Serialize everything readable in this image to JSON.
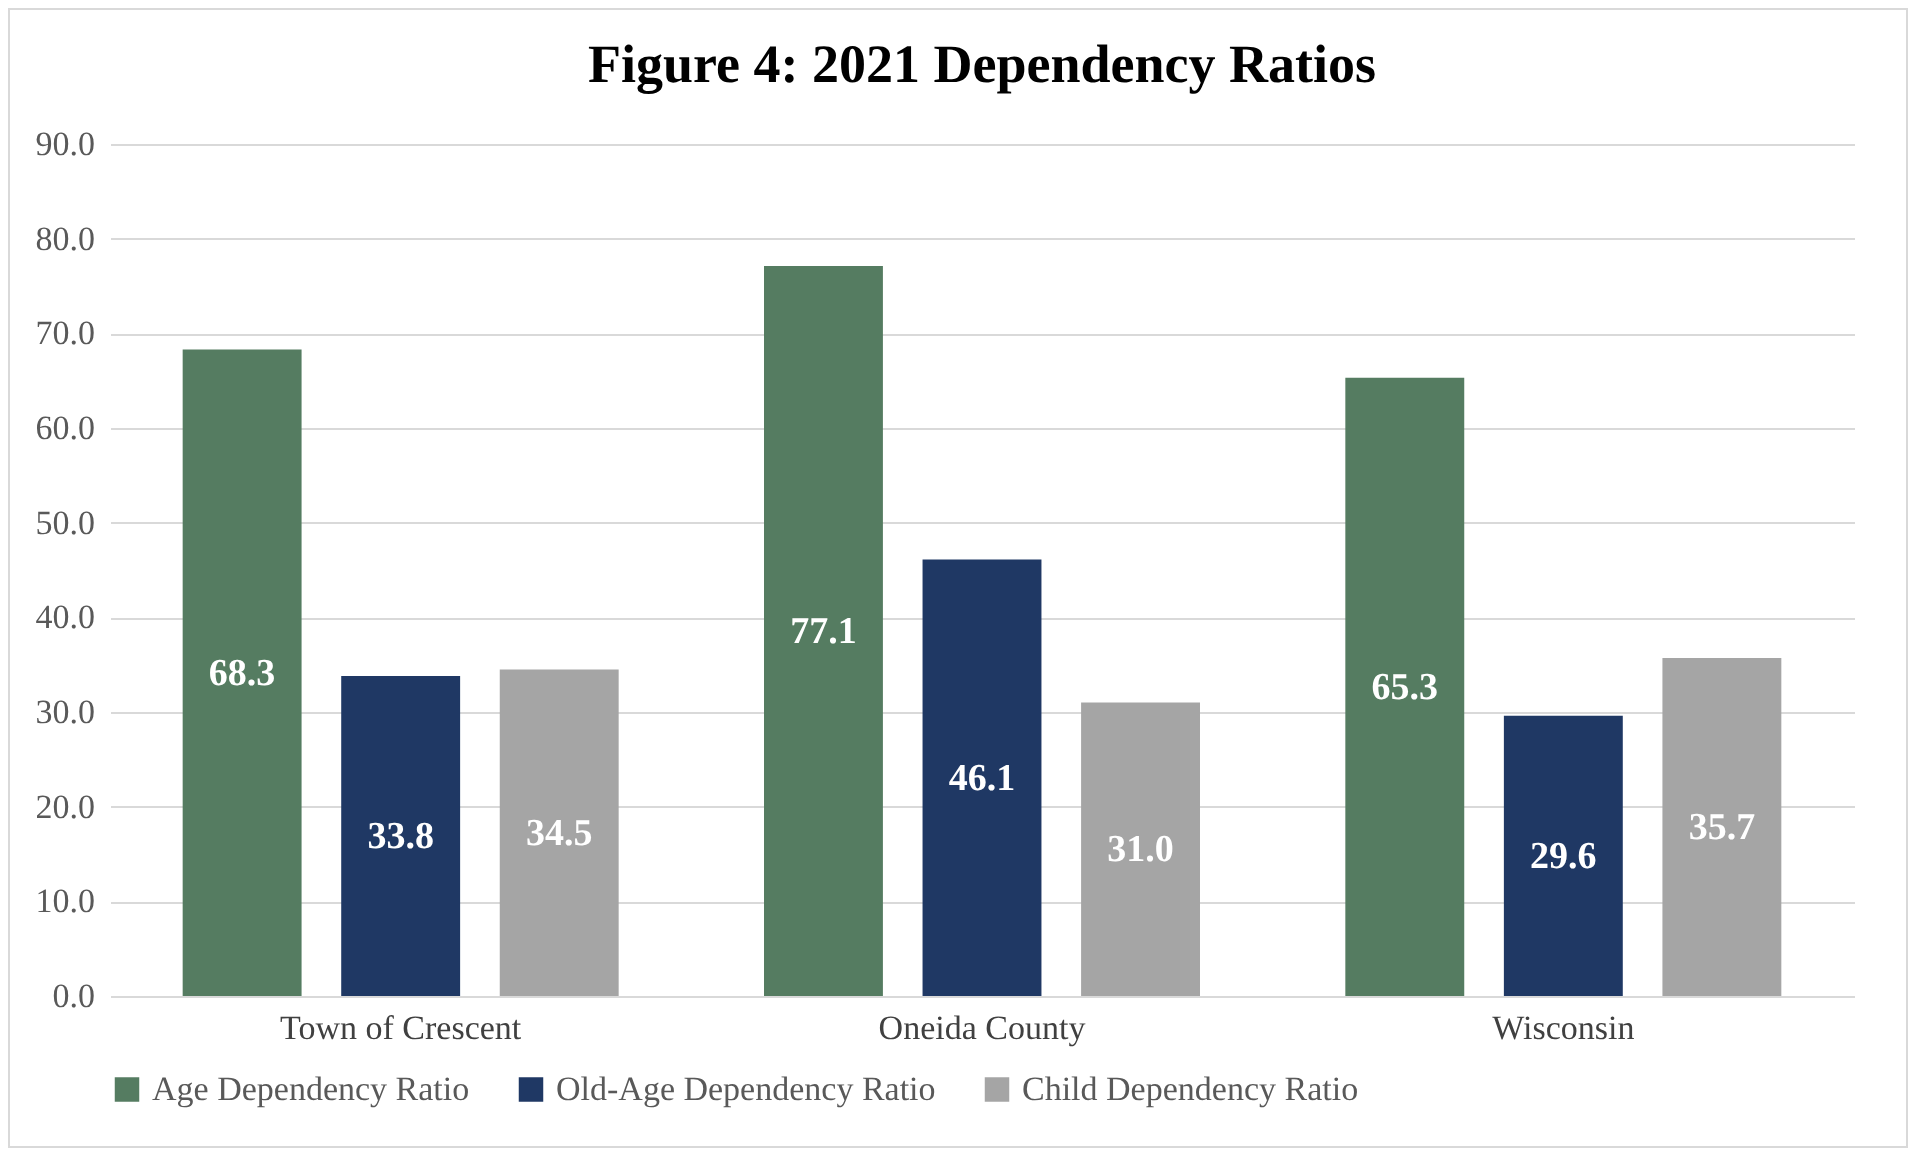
{
  "chart_data": {
    "type": "bar",
    "title": "Figure 4: 2021 Dependency Ratios",
    "categories": [
      "Town of Crescent",
      "Oneida County",
      "Wisconsin"
    ],
    "series": [
      {
        "name": "Age Dependency Ratio",
        "color": "#557c61",
        "values": [
          68.3,
          77.1,
          65.3
        ],
        "value_labels": [
          "68.3",
          "77.1",
          "65.3"
        ]
      },
      {
        "name": "Old-Age Dependency Ratio",
        "color": "#1f3864",
        "values": [
          33.8,
          46.1,
          29.6
        ],
        "value_labels": [
          "33.8",
          "46.1",
          "29.6"
        ]
      },
      {
        "name": "Child Dependency Ratio",
        "color": "#a5a5a5",
        "values": [
          34.5,
          31.0,
          35.7
        ],
        "value_labels": [
          "34.5",
          "31.0",
          "35.7"
        ]
      }
    ],
    "ylim": [
      0,
      90
    ],
    "yticks": [
      {
        "value": 0,
        "label": "0.0"
      },
      {
        "value": 10,
        "label": "10.0"
      },
      {
        "value": 20,
        "label": "20.0"
      },
      {
        "value": 30,
        "label": "30.0"
      },
      {
        "value": 40,
        "label": "40.0"
      },
      {
        "value": 50,
        "label": "50.0"
      },
      {
        "value": 60,
        "label": "60.0"
      },
      {
        "value": 70,
        "label": "70.0"
      },
      {
        "value": 80,
        "label": "80.0"
      },
      {
        "value": 90,
        "label": "90.0"
      }
    ],
    "grid": "y",
    "legend": "bottom"
  }
}
